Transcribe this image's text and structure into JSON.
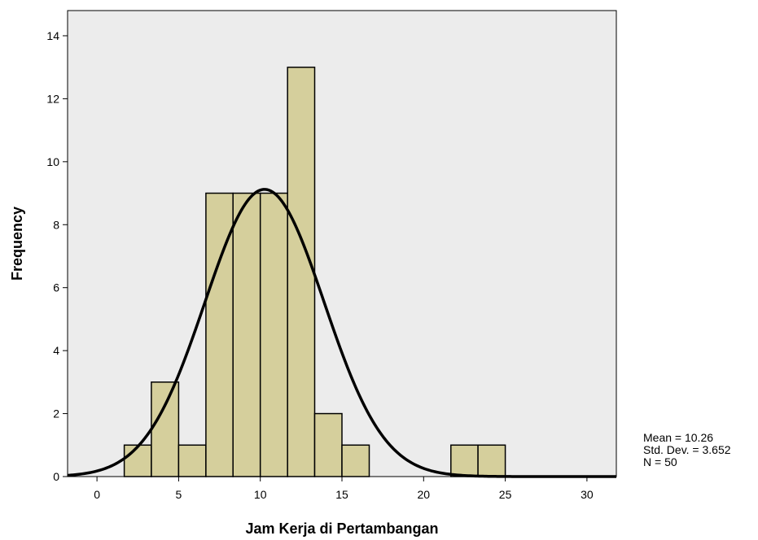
{
  "chart_data": {
    "type": "histogram",
    "xlabel": "Jam Kerja di Pertambangan",
    "ylabel": "Frequency",
    "xlim": [
      -1.8,
      31.8
    ],
    "ylim": [
      0,
      14.8
    ],
    "xticks": [
      0,
      5,
      10,
      15,
      20,
      25,
      30
    ],
    "yticks": [
      0,
      2,
      4,
      6,
      8,
      10,
      12,
      14
    ],
    "bin_width": 1.67,
    "bins": [
      {
        "start": 1.67,
        "end": 3.33,
        "count": 1
      },
      {
        "start": 3.33,
        "end": 5.0,
        "count": 3
      },
      {
        "start": 5.0,
        "end": 6.67,
        "count": 1
      },
      {
        "start": 6.67,
        "end": 8.33,
        "count": 9
      },
      {
        "start": 8.33,
        "end": 10.0,
        "count": 9
      },
      {
        "start": 10.0,
        "end": 11.67,
        "count": 9
      },
      {
        "start": 11.67,
        "end": 13.33,
        "count": 13
      },
      {
        "start": 13.33,
        "end": 15.0,
        "count": 2
      },
      {
        "start": 15.0,
        "end": 16.67,
        "count": 1
      },
      {
        "start": 21.67,
        "end": 23.33,
        "count": 1
      },
      {
        "start": 23.33,
        "end": 25.0,
        "count": 1
      }
    ],
    "normal_curve": {
      "mean": 10.26,
      "std_dev": 3.652,
      "n": 50
    },
    "colors": {
      "plot_background": "#ececec",
      "bar_fill": "#d5cf9c",
      "bar_stroke": "#000000",
      "curve": "#000000"
    },
    "grid": false
  },
  "stats": {
    "mean": "Mean = 10.26",
    "std_dev": "Std. Dev. = 3.652",
    "n": "N = 50"
  }
}
